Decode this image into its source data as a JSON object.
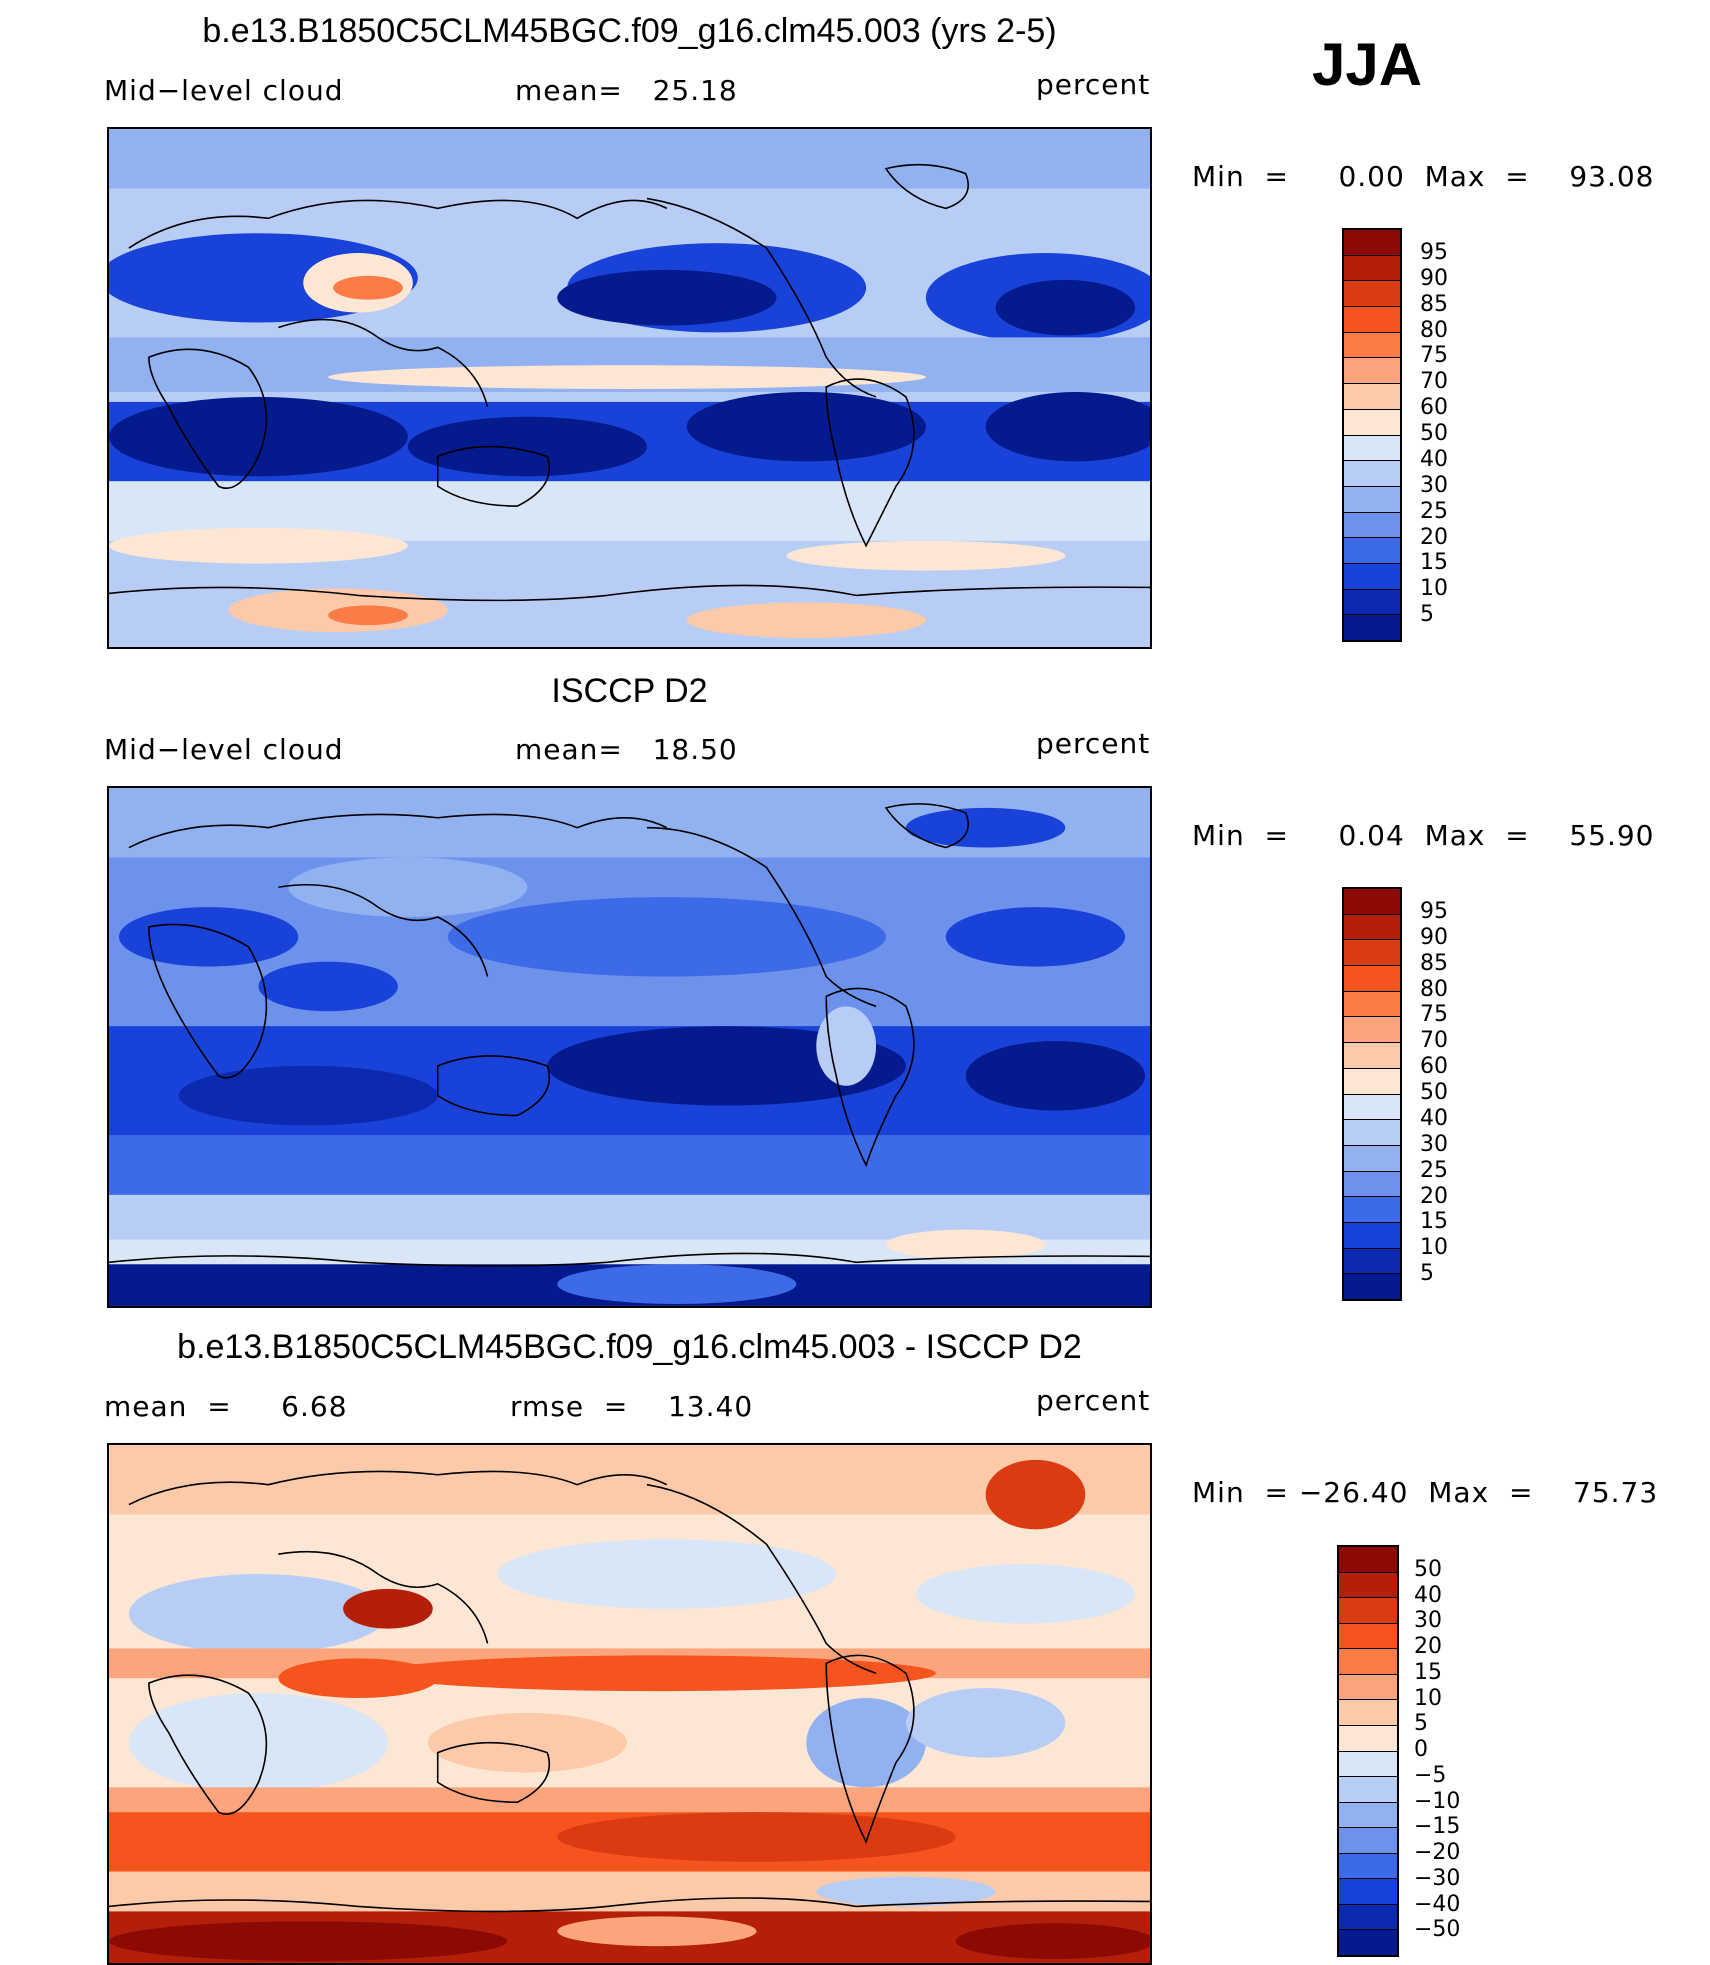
{
  "season": "JJA",
  "panels": [
    {
      "title": "b.e13.B1850C5CLM45BGC.f09_g16.clm45.003 (yrs 2-5)",
      "left_label": "Mid−level cloud",
      "mid_label": "mean=   25.18",
      "right_label": "percent",
      "minmax": "Min  =     0.00  Max  =    93.08",
      "colorbar": {
        "levels": [
          "95",
          "90",
          "85",
          "80",
          "75",
          "70",
          "60",
          "50",
          "40",
          "30",
          "25",
          "20",
          "15",
          "10",
          "5"
        ],
        "colors": [
          "#8c0a04",
          "#b51f0a",
          "#db3b13",
          "#f5541e",
          "#fb7c47",
          "#fca47b",
          "#fcc9a9",
          "#fde7d4",
          "#d8e6f8",
          "#b7cdf5",
          "#92b1f0",
          "#6c92ec",
          "#3d6ae6",
          "#1842d8",
          "#0b2ab0",
          "#051a8c"
        ]
      }
    },
    {
      "title": "ISCCP D2",
      "left_label": "Mid−level cloud",
      "mid_label": "mean=   18.50",
      "right_label": "percent",
      "minmax": "Min  =     0.04  Max  =    55.90",
      "colorbar": {
        "levels": [
          "95",
          "90",
          "85",
          "80",
          "75",
          "70",
          "60",
          "50",
          "40",
          "30",
          "25",
          "20",
          "15",
          "10",
          "5"
        ],
        "colors": [
          "#8c0a04",
          "#b51f0a",
          "#db3b13",
          "#f5541e",
          "#fb7c47",
          "#fca47b",
          "#fcc9a9",
          "#fde7d4",
          "#d8e6f8",
          "#b7cdf5",
          "#92b1f0",
          "#6c92ec",
          "#3d6ae6",
          "#1842d8",
          "#0b2ab0",
          "#051a8c"
        ]
      }
    },
    {
      "title": "b.e13.B1850C5CLM45BGC.f09_g16.clm45.003 - ISCCP D2",
      "left_label": "mean  =     6.68",
      "mid_label": "rmse  =    13.40",
      "right_label": "percent",
      "minmax": "Min  = −26.40  Max  =    75.73",
      "colorbar": {
        "levels": [
          "50",
          "40",
          "30",
          "20",
          "15",
          "10",
          "5",
          "0",
          "−5",
          "−10",
          "−15",
          "−20",
          "−30",
          "−40",
          "−50"
        ],
        "colors": [
          "#8c0a04",
          "#b51f0a",
          "#db3b13",
          "#f5541e",
          "#fb7c47",
          "#fca47b",
          "#fcc9a9",
          "#fde7d4",
          "#d8e6f8",
          "#b7cdf5",
          "#92b1f0",
          "#6c92ec",
          "#3d6ae6",
          "#1842d8",
          "#0b2ab0",
          "#051a8c"
        ]
      }
    }
  ]
}
